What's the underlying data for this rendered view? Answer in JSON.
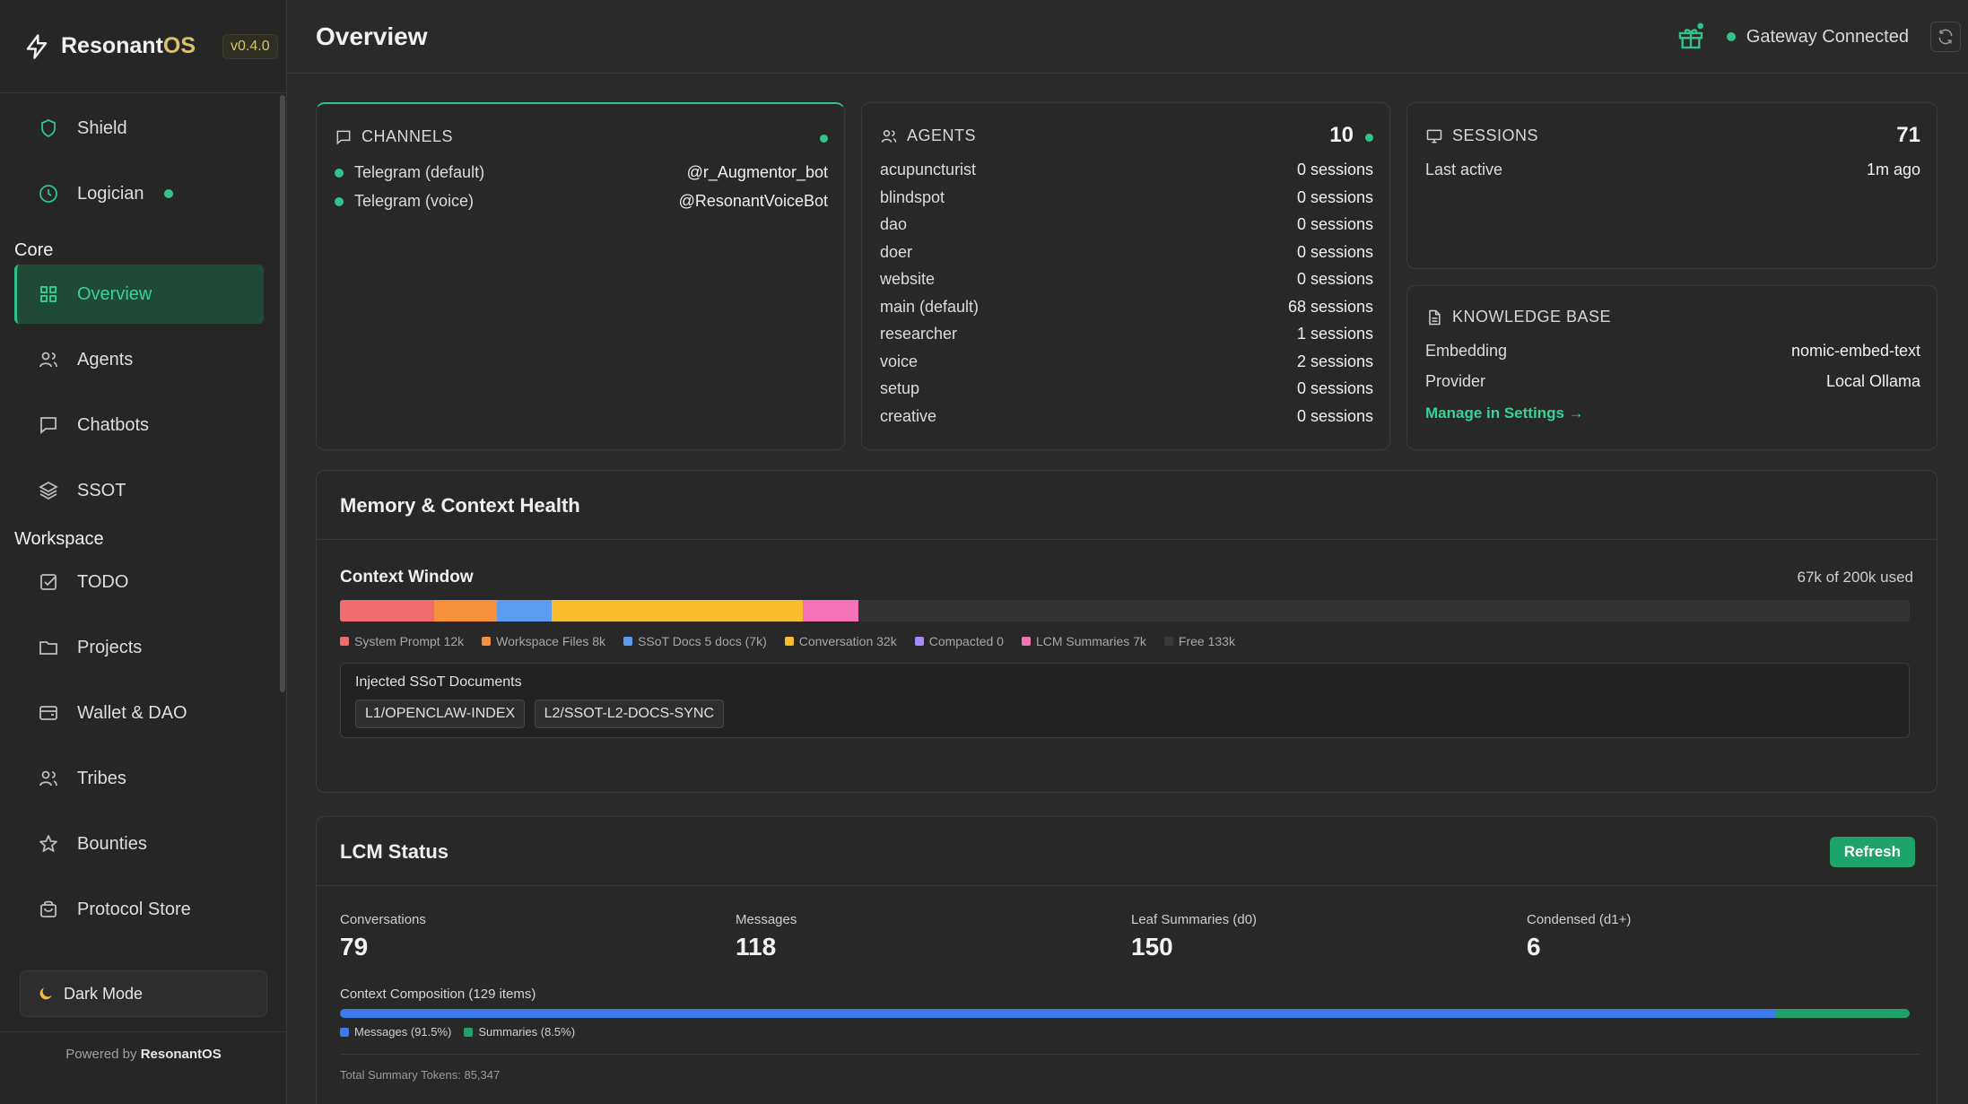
{
  "brand": {
    "name_main": "Resonant",
    "name_accent": "OS",
    "version": "v0.4.0"
  },
  "sidebar": {
    "items_top": [
      {
        "label": "Shield",
        "icon": "shield-icon"
      },
      {
        "label": "Logician",
        "icon": "clock-icon",
        "status": "online"
      }
    ],
    "sections": [
      {
        "label": "Core",
        "items": [
          {
            "label": "Overview",
            "icon": "grid-icon",
            "active": true
          },
          {
            "label": "Agents",
            "icon": "users-icon"
          },
          {
            "label": "Chatbots",
            "icon": "chat-icon"
          },
          {
            "label": "SSOT",
            "icon": "layers-icon"
          }
        ]
      },
      {
        "label": "Workspace",
        "items": [
          {
            "label": "TODO",
            "icon": "checkbox-icon"
          },
          {
            "label": "Projects",
            "icon": "folder-icon"
          },
          {
            "label": "Wallet & DAO",
            "icon": "wallet-icon"
          },
          {
            "label": "Tribes",
            "icon": "users-icon"
          },
          {
            "label": "Bounties",
            "icon": "star-icon"
          },
          {
            "label": "Protocol Store",
            "icon": "bag-icon"
          }
        ]
      }
    ],
    "dark_mode_label": "Dark Mode",
    "powered_prefix": "Powered by",
    "powered_brand": "ResonantOS"
  },
  "header": {
    "title": "Overview",
    "gateway_status": "Gateway Connected"
  },
  "channels": {
    "title": "CHANNELS",
    "items": [
      {
        "name": "Telegram (default)",
        "handle": "@r_Augmentor_bot"
      },
      {
        "name": "Telegram (voice)",
        "handle": "@ResonantVoiceBot"
      }
    ]
  },
  "agents": {
    "title": "AGENTS",
    "count": "10",
    "items": [
      {
        "name": "acupuncturist",
        "sessions": "0 sessions"
      },
      {
        "name": "blindspot",
        "sessions": "0 sessions"
      },
      {
        "name": "dao",
        "sessions": "0 sessions"
      },
      {
        "name": "doer",
        "sessions": "0 sessions"
      },
      {
        "name": "website",
        "sessions": "0 sessions"
      },
      {
        "name": "main (default)",
        "sessions": "68 sessions"
      },
      {
        "name": "researcher",
        "sessions": "1 sessions"
      },
      {
        "name": "voice",
        "sessions": "2 sessions"
      },
      {
        "name": "setup",
        "sessions": "0 sessions"
      },
      {
        "name": "creative",
        "sessions": "0 sessions"
      }
    ]
  },
  "sessions": {
    "title": "SESSIONS",
    "count": "71",
    "last_active_label": "Last active",
    "last_active_value": "1m ago"
  },
  "knowledge_base": {
    "title": "KNOWLEDGE BASE",
    "embedding_label": "Embedding",
    "embedding_value": "nomic-embed-text",
    "provider_label": "Provider",
    "provider_value": "Local Ollama",
    "manage_link": "Manage in Settings →"
  },
  "memory": {
    "title": "Memory & Context Health",
    "context_window_label": "Context Window",
    "usage": "67k of 200k used",
    "total_k": 200,
    "segments": [
      {
        "label": "System Prompt 12k",
        "k": 12,
        "color": "#f06b6b"
      },
      {
        "label": "Workspace Files 8k",
        "k": 8,
        "color": "#f5903d"
      },
      {
        "label": "SSoT Docs 5 docs (7k)",
        "k": 7,
        "color": "#5b9cf0"
      },
      {
        "label": "Conversation 32k",
        "k": 32,
        "color": "#f7bd2e"
      },
      {
        "label": "Compacted 0",
        "k": 0,
        "color": "#a78bfa"
      },
      {
        "label": "LCM Summaries 7k",
        "k": 7,
        "color": "#f472b6"
      },
      {
        "label": "Free 133k",
        "k": 133,
        "color": "#3a3a3a"
      }
    ],
    "injected_title": "Injected SSoT Documents",
    "injected_docs": [
      "L1/OPENCLAW-INDEX",
      "L2/SSOT-L2-DOCS-SYNC"
    ]
  },
  "lcm": {
    "title": "LCM Status",
    "refresh_label": "Refresh",
    "stats": [
      {
        "label": "Conversations",
        "value": "79"
      },
      {
        "label": "Messages",
        "value": "118"
      },
      {
        "label": "Leaf Summaries (d0)",
        "value": "150"
      },
      {
        "label": "Condensed (d1+)",
        "value": "6"
      }
    ],
    "composition_label": "Context Composition (129 items)",
    "composition": [
      {
        "label": "Messages (91.5%)",
        "percent": 91.5,
        "color": "#3b7ae8"
      },
      {
        "label": "Summaries (8.5%)",
        "percent": 8.5,
        "color": "#1ea36b"
      }
    ],
    "total_tokens": "Total Summary Tokens: 85,347"
  }
}
